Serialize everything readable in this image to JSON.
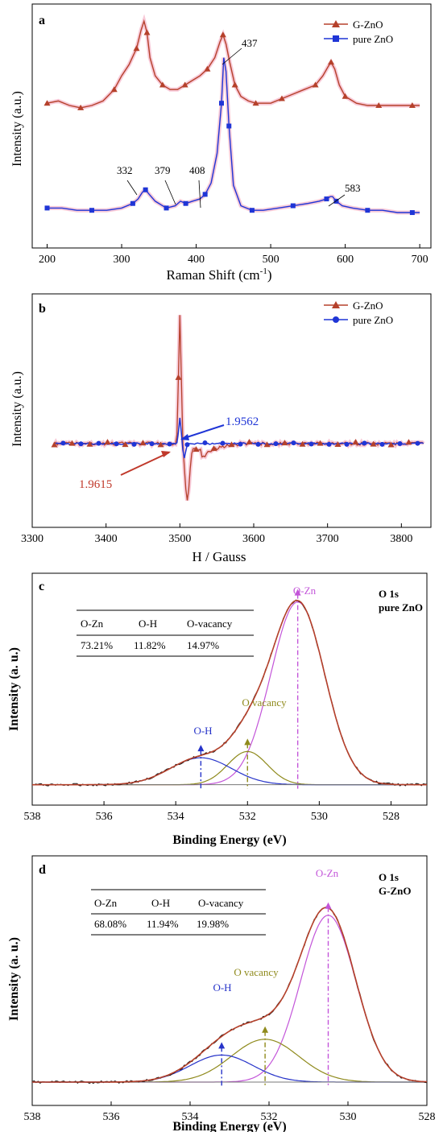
{
  "chart_data": [
    {
      "type": "line",
      "panel_label": "a",
      "xlabel": "Raman Shift (cm",
      "xlabel_sup": "-1",
      "xlabel_end": ")",
      "ylabel": "Intensity (a.u.)",
      "xlim": [
        180,
        715
      ],
      "ylim": [
        0,
        1
      ],
      "xticks": [
        "200",
        "300",
        "400",
        "500",
        "600",
        "700"
      ],
      "legend": [
        "G-ZnO",
        "pure ZnO"
      ],
      "colors": {
        "g_zno": "#b5412b",
        "pure_zno": "#1f35d6",
        "highlight": "#f5b3c7"
      },
      "annotations": [
        "332",
        "379",
        "408",
        "437",
        "583"
      ],
      "series": [
        {
          "name": "G-ZnO",
          "x": [
            200,
            215,
            230,
            245,
            260,
            275,
            290,
            300,
            310,
            320,
            326,
            330,
            334,
            338,
            345,
            355,
            365,
            375,
            385,
            395,
            405,
            415,
            425,
            432,
            436,
            440,
            445,
            452,
            460,
            470,
            480,
            490,
            500,
            515,
            530,
            545,
            560,
            570,
            577,
            581,
            586,
            592,
            600,
            615,
            630,
            645,
            660,
            675,
            690,
            700
          ],
          "y": [
            0.6,
            0.61,
            0.59,
            0.58,
            0.59,
            0.61,
            0.66,
            0.72,
            0.77,
            0.84,
            0.92,
            0.96,
            0.91,
            0.8,
            0.72,
            0.68,
            0.66,
            0.66,
            0.68,
            0.7,
            0.72,
            0.75,
            0.8,
            0.87,
            0.9,
            0.86,
            0.78,
            0.68,
            0.63,
            0.61,
            0.6,
            0.6,
            0.6,
            0.62,
            0.64,
            0.66,
            0.68,
            0.72,
            0.76,
            0.78,
            0.75,
            0.68,
            0.63,
            0.6,
            0.59,
            0.59,
            0.59,
            0.59,
            0.59,
            0.59
          ]
        },
        {
          "name": "pure ZnO",
          "x": [
            200,
            220,
            240,
            260,
            280,
            300,
            315,
            322,
            328,
            332,
            337,
            345,
            360,
            372,
            379,
            386,
            395,
            405,
            412,
            420,
            428,
            434,
            437,
            440,
            444,
            450,
            460,
            475,
            490,
            510,
            530,
            550,
            565,
            575,
            580,
            583,
            588,
            596,
            610,
            630,
            650,
            670,
            690,
            700
          ],
          "y": [
            0.14,
            0.14,
            0.13,
            0.13,
            0.13,
            0.14,
            0.16,
            0.18,
            0.21,
            0.22,
            0.2,
            0.17,
            0.14,
            0.15,
            0.17,
            0.16,
            0.17,
            0.18,
            0.2,
            0.25,
            0.38,
            0.6,
            0.8,
            0.74,
            0.5,
            0.24,
            0.15,
            0.13,
            0.13,
            0.14,
            0.15,
            0.16,
            0.17,
            0.18,
            0.19,
            0.19,
            0.17,
            0.15,
            0.14,
            0.13,
            0.13,
            0.12,
            0.12,
            0.12
          ]
        }
      ]
    },
    {
      "type": "line",
      "panel_label": "b",
      "xlabel": "H  / Gauss",
      "ylabel": "Intensity (a.u.)",
      "xlim": [
        3300,
        3840
      ],
      "ylim": [
        -1,
        1
      ],
      "xticks": [
        "3300",
        "3400",
        "3500",
        "3600",
        "3700",
        "3800"
      ],
      "legend": [
        "G-ZnO",
        "pure ZnO"
      ],
      "annotations": [
        "1.9562",
        "1.9615"
      ]
    },
    {
      "type": "line",
      "panel_label": "c",
      "corner_title": "O 1s",
      "corner_subtitle": "pure ZnO",
      "xlabel": "Binding Energy (eV)",
      "ylabel": "Intensity (a. u.)",
      "xlim": [
        538,
        527
      ],
      "ylim": [
        0,
        1
      ],
      "xticks": [
        "538",
        "536",
        "534",
        "532",
        "530",
        "528"
      ],
      "peak_labels": {
        "o_zn": "O-Zn",
        "o_vacancy": "O vacancy",
        "o_h": "O-H"
      },
      "peaks": [
        {
          "name": "O-Zn",
          "center": 530.6,
          "height": 0.88,
          "width": 0.75
        },
        {
          "name": "O vacancy",
          "center": 532.0,
          "height": 0.16,
          "width": 0.55
        },
        {
          "name": "O-H",
          "center": 533.3,
          "height": 0.13,
          "width": 0.85
        }
      ],
      "baseline": 0.04,
      "table": {
        "headers": [
          "O-Zn",
          "O-H",
          "O-vacancy"
        ],
        "values": [
          "73.21%",
          "11.82%",
          "14.97%"
        ]
      }
    },
    {
      "type": "line",
      "panel_label": "d",
      "corner_title": "O 1s",
      "corner_subtitle": "G-ZnO",
      "xlabel": "Binding Energy (eV)",
      "ylabel": "Intensity (a. u.)",
      "xlim": [
        538,
        528
      ],
      "ylim": [
        0,
        1
      ],
      "xticks": [
        "538",
        "536",
        "534",
        "532",
        "530",
        "528"
      ],
      "peak_labels": {
        "o_zn": "O-Zn",
        "o_vacancy": "O vacancy",
        "o_h": "O-H"
      },
      "peaks": [
        {
          "name": "O-Zn",
          "center": 530.5,
          "height": 0.74,
          "width": 0.7
        },
        {
          "name": "O vacancy",
          "center": 532.1,
          "height": 0.19,
          "width": 0.85
        },
        {
          "name": "O-H",
          "center": 533.2,
          "height": 0.12,
          "width": 0.8
        }
      ],
      "baseline": 0.05,
      "table": {
        "headers": [
          "O-Zn",
          "O-H",
          "O-vacancy"
        ],
        "values": [
          "68.08%",
          "11.94%",
          "19.98%"
        ]
      }
    }
  ]
}
